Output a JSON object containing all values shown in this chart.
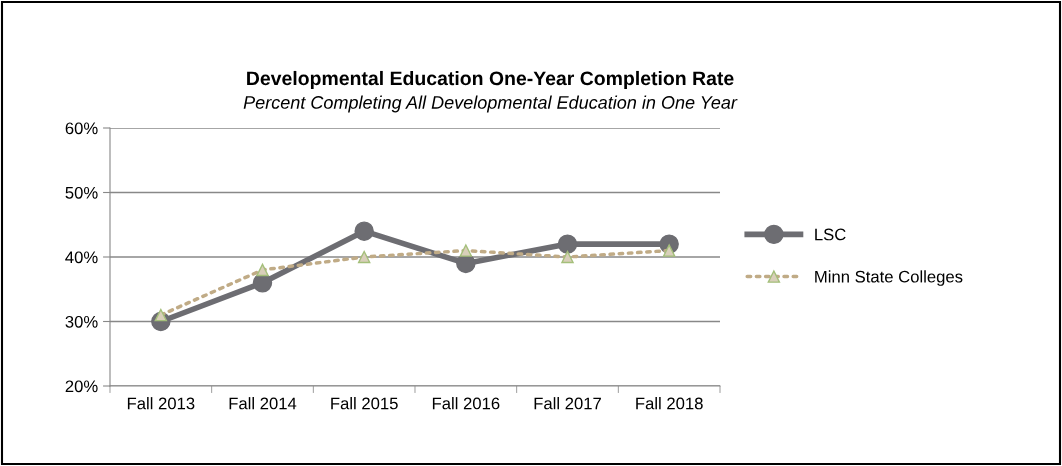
{
  "chart_data": {
    "type": "line",
    "title": "Developmental Education One-Year Completion Rate",
    "subtitle": "Percent Completing All Developmental Education in One Year",
    "categories": [
      "Fall 2013",
      "Fall 2014",
      "Fall 2015",
      "Fall 2016",
      "Fall 2017",
      "Fall 2018"
    ],
    "series": [
      {
        "name": "LSC",
        "color": "#6d6d72",
        "values": [
          30,
          36,
          44,
          39,
          42,
          42
        ],
        "marker": "circle",
        "line_style": "solid"
      },
      {
        "name": "Minn State Colleges",
        "color": "#c0ab86",
        "values": [
          31,
          38,
          40,
          41,
          40,
          41
        ],
        "marker": "triangle",
        "line_style": "dotted"
      }
    ],
    "ylim": [
      20,
      60
    ],
    "yticks": [
      {
        "value": 20,
        "label": "20%"
      },
      {
        "value": 30,
        "label": "30%"
      },
      {
        "value": 40,
        "label": "40%"
      },
      {
        "value": 50,
        "label": "50%"
      },
      {
        "value": 60,
        "label": "60%"
      }
    ],
    "grid": "y",
    "legend": "right"
  }
}
